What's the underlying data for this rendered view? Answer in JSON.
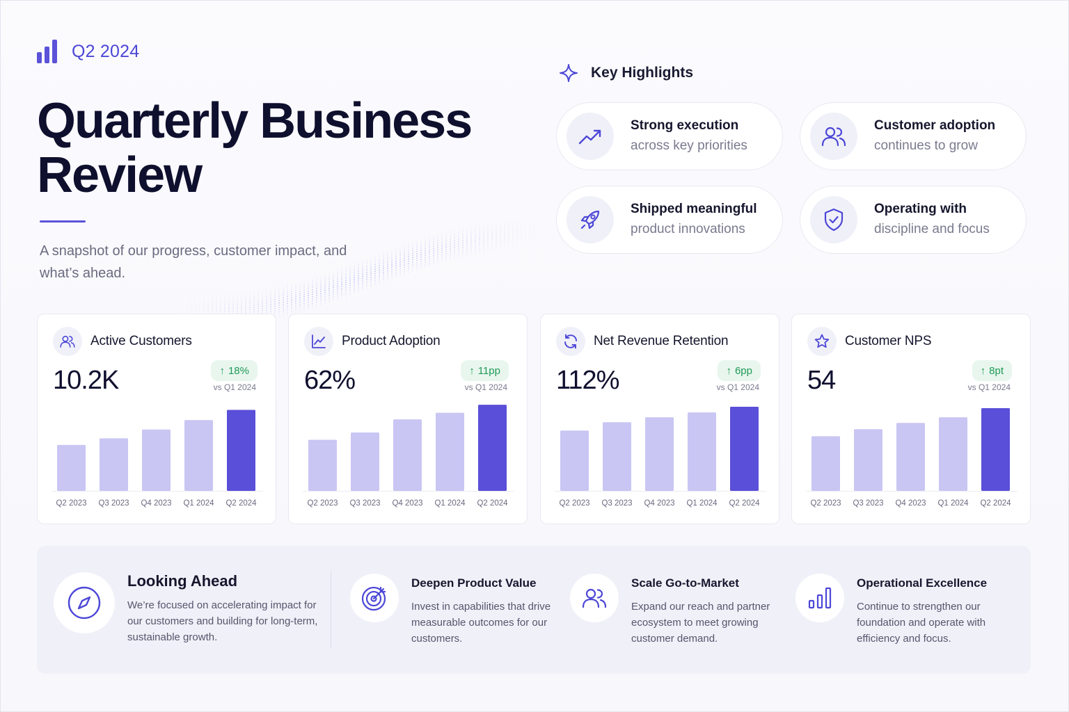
{
  "header": {
    "period": "Q2 2024",
    "title": "Quarterly Business Review",
    "subtitle": "A snapshot of our progress, customer impact, and what’s ahead."
  },
  "highlights": {
    "heading": "Key Highlights",
    "items": [
      {
        "title": "Strong execution",
        "subtitle": "across key priorities",
        "icon": "trend-up-icon"
      },
      {
        "title": "Customer adoption",
        "subtitle": "continues to grow",
        "icon": "users-icon"
      },
      {
        "title": "Shipped meaningful",
        "subtitle": "product innovations",
        "icon": "rocket-icon"
      },
      {
        "title": "Operating with",
        "subtitle": "discipline and focus",
        "icon": "shield-check-icon"
      }
    ]
  },
  "colors": {
    "accent": "#5b52d9",
    "bar_current": "#5a4fd8",
    "bar_prior": "#c9c6f3",
    "positive": "#1f9a55"
  },
  "chart_data": [
    {
      "type": "bar",
      "title": "Active Customers",
      "headline": "10.2K",
      "change": "18%",
      "comparison": "vs Q1 2024",
      "icon": "users-icon",
      "categories": [
        "Q2 2023",
        "Q3 2023",
        "Q4 2023",
        "Q1 2024",
        "Q2 2024"
      ],
      "values": [
        63,
        72,
        84,
        97,
        111
      ],
      "ylim": [
        0,
        120
      ],
      "highlight_last": true
    },
    {
      "type": "bar",
      "title": "Product Adoption",
      "headline": "62%",
      "change": "11pp",
      "comparison": "vs Q1 2024",
      "icon": "line-chart-icon",
      "categories": [
        "Q2 2023",
        "Q3 2023",
        "Q4 2023",
        "Q1 2024",
        "Q2 2024"
      ],
      "values": [
        70,
        80,
        98,
        107,
        118
      ],
      "ylim": [
        0,
        120
      ],
      "highlight_last": true
    },
    {
      "type": "bar",
      "title": "Net Revenue Retention",
      "headline": "112%",
      "change": "6pp",
      "comparison": "vs Q1 2024",
      "icon": "refresh-icon",
      "categories": [
        "Q2 2023",
        "Q3 2023",
        "Q4 2023",
        "Q1 2024",
        "Q2 2024"
      ],
      "values": [
        86,
        98,
        105,
        112,
        120
      ],
      "ylim": [
        0,
        125
      ],
      "highlight_last": true
    },
    {
      "type": "bar",
      "title": "Customer NPS",
      "headline": "54",
      "change": "8pt",
      "comparison": "vs Q1 2024",
      "icon": "star-icon",
      "categories": [
        "Q2 2023",
        "Q3 2023",
        "Q4 2023",
        "Q1 2024",
        "Q2 2024"
      ],
      "values": [
        78,
        88,
        97,
        105,
        118
      ],
      "ylim": [
        0,
        125
      ],
      "highlight_last": true
    }
  ],
  "looking_ahead": {
    "title": "Looking Ahead",
    "description": "We’re focused on accelerating impact for our customers and building for long-term, sustainable growth.",
    "icon": "compass-icon",
    "items": [
      {
        "title": "Deepen Product Value",
        "description": "Invest in capabilities that drive measurable outcomes for our customers.",
        "icon": "target-icon"
      },
      {
        "title": "Scale Go-to-Market",
        "description": "Expand our reach and partner ecosystem to meet growing customer demand.",
        "icon": "users-icon"
      },
      {
        "title": "Operational Excellence",
        "description": "Continue to strengthen our foundation and operate with efficiency and focus.",
        "icon": "bar-chart-icon"
      }
    ]
  }
}
